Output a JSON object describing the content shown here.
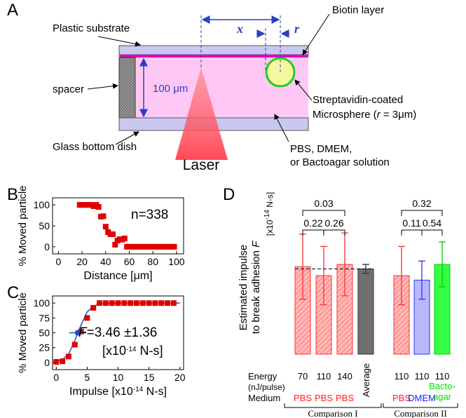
{
  "panel_labels": [
    "A",
    "B",
    "C",
    "D"
  ],
  "diagram": {
    "plastic_substrate": "Plastic substrate",
    "spacer": "spacer",
    "glass": "Glass bottom dish",
    "height": "100 μm",
    "laser": "Laser",
    "x": "x",
    "r": "r",
    "biotin": "Biotin layer",
    "sphere_1": "Streptavidin-coated",
    "sphere_2a": "Microsphere (",
    "sphere_2b": "r",
    "sphere_2c": " = 3μm)",
    "solution_1": "PBS, DMEM,",
    "solution_2": "or Bactoagar solution"
  },
  "chart_data": [
    {
      "type": "scatter",
      "xlabel": "Distance [μm]",
      "ylabel": "% Moved particle",
      "annotation": "n=338",
      "x": [
        18,
        20,
        22,
        24,
        26,
        28,
        30,
        32,
        34,
        36,
        38,
        40,
        42,
        44,
        46,
        48,
        50,
        52,
        54,
        56,
        58,
        60,
        62,
        64,
        66,
        68,
        70,
        72,
        74,
        76,
        78,
        80,
        82,
        84,
        86,
        88,
        90,
        92,
        94,
        96,
        98
      ],
      "values": [
        100,
        100,
        100,
        100,
        100,
        100,
        97,
        100,
        95,
        72,
        73,
        48,
        35,
        30,
        30,
        5,
        15,
        18,
        17,
        20,
        0,
        0,
        0,
        0,
        0,
        0,
        0,
        0,
        0,
        0,
        0,
        0,
        0,
        0,
        0,
        0,
        0,
        0,
        0,
        0,
        0
      ],
      "color": "#e00000",
      "xlim": [
        -5,
        106
      ],
      "xticks": [
        0,
        20,
        40,
        60,
        80,
        100
      ],
      "ylim": [
        -17,
        117
      ],
      "yticks": [
        0,
        50,
        100
      ]
    },
    {
      "type": "scatter",
      "xlabel": [
        "Impulse [x10",
        "-14",
        " N-s]"
      ],
      "ylabel": "% Moved particle",
      "annotation": {
        "symbol": "F",
        "text": "=3.46 ±1.36",
        "unit": [
          "[x10",
          "-14",
          " N-s]"
        ]
      },
      "x": [
        0,
        1,
        2,
        3,
        4,
        5,
        6,
        7,
        8,
        9,
        10,
        11,
        12,
        13,
        14,
        15,
        16,
        17,
        18,
        19
      ],
      "values": [
        1,
        2,
        10,
        30,
        52,
        75,
        92,
        100,
        100,
        100,
        100,
        100,
        100,
        100,
        100,
        100,
        100,
        100,
        100,
        100
      ],
      "color": "#e00000",
      "estimate": {
        "x": 3.46,
        "xerr": 1.36,
        "y": 50,
        "color": "#1f4fc0"
      },
      "fit": {
        "x": [
          0,
          1,
          2,
          3,
          3.5,
          4,
          5,
          6,
          7,
          8,
          10,
          20
        ],
        "values": [
          2,
          5,
          14,
          37,
          50,
          63,
          85,
          95,
          98.5,
          99.5,
          100,
          100
        ],
        "color": "#1f4fc0"
      },
      "xlim": [
        -0.6,
        20.6
      ],
      "xticks": [
        0,
        5,
        10,
        15,
        20
      ],
      "ylim": [
        -12,
        112
      ],
      "yticks": [
        0,
        25,
        50,
        75,
        100
      ]
    },
    {
      "type": "bar",
      "ylabel": [
        "Estimated impulse",
        "to break adhesion "
      ],
      "ylabel_symbol": "F",
      "unit": [
        "[x10",
        "-14",
        " N-s]"
      ],
      "row_labels": {
        "energy": "Energy",
        "energy_unit": "(nJ/pulse)",
        "medium": "Medium"
      },
      "categories": [
        "70",
        "110",
        "140",
        null,
        "110",
        "110",
        "110"
      ],
      "media": [
        [
          "PBS"
        ],
        [
          "PBS"
        ],
        [
          "PBS"
        ],
        [
          "Average"
        ],
        [
          "PBS"
        ],
        [
          "DMEM"
        ],
        [
          "Bacto-",
          "agar"
        ]
      ],
      "media_colors": [
        "#ff2020",
        "#ff2020",
        "#ff2020",
        "#000000",
        "#ff2020",
        "#2020ff",
        "#00dd00"
      ],
      "values": [
        3.9,
        3.5,
        4.0,
        3.8,
        3.5,
        3.3,
        4.0
      ],
      "errors": [
        1.45,
        1.3,
        1.4,
        0.2,
        1.3,
        0.85,
        1.0
      ],
      "colors": [
        "#ff3030",
        "#ff3030",
        "#ff3030",
        "#303030",
        "#ff3030",
        "#3030ff",
        "#00cc00"
      ],
      "fills": [
        "#ffb0b0",
        "#ffb0b0",
        "#ffb0b0",
        "#707070",
        "#ffb0b0",
        "#b8b8ff",
        "#33ff44"
      ],
      "hatched": [
        true,
        true,
        true,
        false,
        true,
        false,
        false
      ],
      "ylim": [
        0,
        8
      ],
      "comparisons": [
        {
          "from": 0,
          "to": 2,
          "label": "0.03"
        },
        {
          "from": 0,
          "to": 1,
          "label": "0.22"
        },
        {
          "from": 1,
          "to": 2,
          "label": "0.26"
        },
        {
          "from": 4,
          "to": 6,
          "label": "0.32"
        },
        {
          "from": 4,
          "to": 5,
          "label": "0.11"
        },
        {
          "from": 5,
          "to": 6,
          "label": "0.54"
        }
      ],
      "groups": [
        {
          "label": "Comparison I",
          "from": 0,
          "to": 3
        },
        {
          "label": "Comparison II",
          "from": 4,
          "to": 6
        }
      ]
    }
  ]
}
